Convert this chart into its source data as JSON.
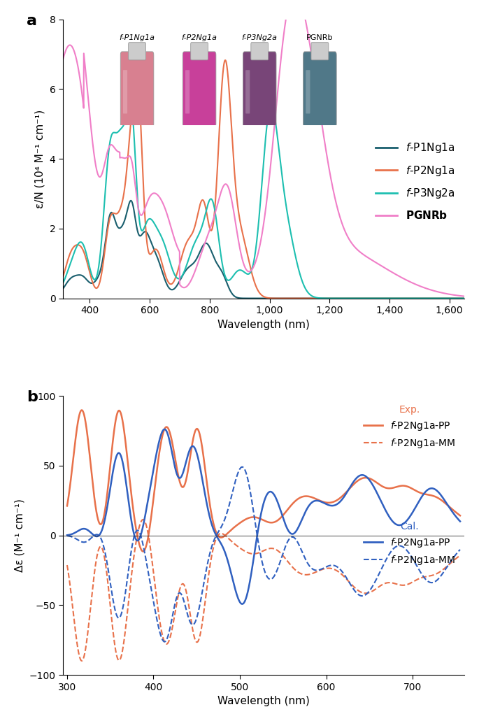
{
  "panel_a": {
    "title": "a",
    "xlabel": "Wavelength (nm)",
    "ylabel": "ε/N (10⁴ M⁻¹ cm⁻¹)",
    "xlim": [
      310,
      1650
    ],
    "ylim": [
      0,
      8
    ],
    "yticks": [
      0,
      2,
      4,
      6,
      8
    ],
    "xticks": [
      400,
      600,
      800,
      1000,
      1200,
      1400,
      1600
    ],
    "colors": {
      "P1Ng1a": "#1a5f6e",
      "P2Ng1a": "#e8714a",
      "P3Ng2a": "#1dbfb0",
      "PGNRb": "#f07fc8"
    },
    "legend_labels": [
      "f-P1Ng1a",
      "f-P2Ng1a",
      "f-P3Ng2a",
      "PGNRb"
    ],
    "inset_labels": [
      "f-P1Ng1a",
      "f-P2Ng1a",
      "f-P3Ng2a",
      "PGNRb"
    ],
    "inset_colors": [
      "#d4748a",
      "#c0407a",
      "#7b4080",
      "#5a8a90"
    ]
  },
  "panel_b": {
    "title": "b",
    "xlabel": "Wavelength (nm)",
    "ylabel": "Δε (M⁻¹ cm⁻¹)",
    "xlim": [
      295,
      760
    ],
    "ylim": [
      -100,
      100
    ],
    "yticks": [
      -100,
      -50,
      0,
      50,
      100
    ],
    "xticks": [
      300,
      400,
      500,
      600,
      700
    ],
    "colors": {
      "exp_PP": "#e8714a",
      "exp_MM": "#e8714a",
      "cal_PP": "#3060c0",
      "cal_MM": "#3060c0"
    }
  }
}
